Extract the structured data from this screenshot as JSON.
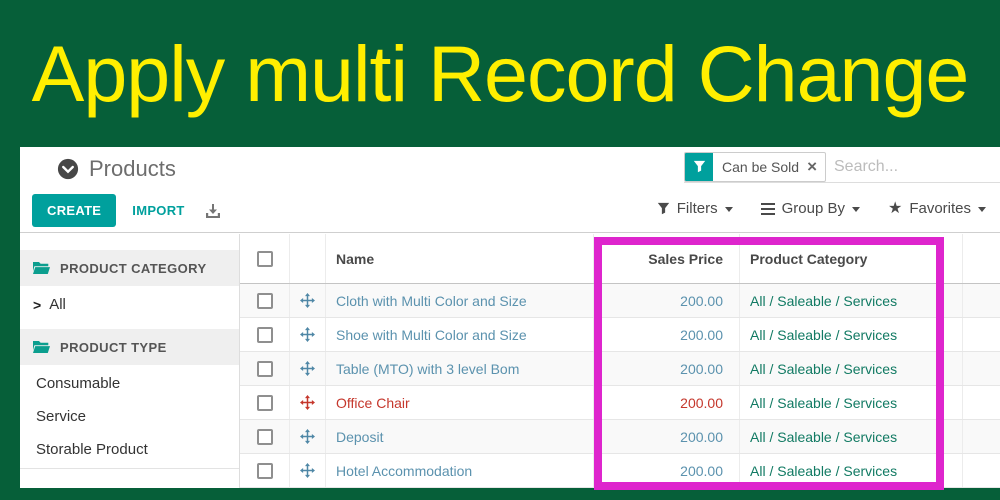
{
  "banner": {
    "title": "Apply multi Record Change"
  },
  "breadcrumb": {
    "title": "Products"
  },
  "toolbar": {
    "create": "CREATE",
    "import": "IMPORT",
    "export_icon": "download-icon"
  },
  "search": {
    "facet_label": "Can be Sold",
    "facet_icon": "funnel-icon",
    "remove_icon": "close-icon",
    "placeholder": "Search..."
  },
  "filter_menu": {
    "filters": "Filters",
    "group_by": "Group By",
    "favorites": "Favorites"
  },
  "sidebar": {
    "sections": [
      {
        "label": "PRODUCT CATEGORY",
        "icon": "folder-icon",
        "items": [
          {
            "label": "All",
            "expandable": true
          }
        ]
      },
      {
        "label": "PRODUCT TYPE",
        "icon": "folder-icon",
        "items": [
          {
            "label": "Consumable"
          },
          {
            "label": "Service"
          },
          {
            "label": "Storable Product"
          }
        ]
      }
    ]
  },
  "table": {
    "headers": {
      "name": "Name",
      "sales_price": "Sales Price",
      "product_category": "Product Category"
    },
    "rows": [
      {
        "name": "Cloth with Multi Color and Size",
        "sales_price": "200.00",
        "product_category": "All / Saleable / Services",
        "style": "normal"
      },
      {
        "name": "Shoe with Multi Color and Size",
        "sales_price": "200.00",
        "product_category": "All / Saleable / Services",
        "style": "normal"
      },
      {
        "name": "Table (MTO) with 3 level Bom",
        "sales_price": "200.00",
        "product_category": "All / Saleable / Services",
        "style": "normal"
      },
      {
        "name": "Office Chair",
        "sales_price": "200.00",
        "product_category": "All / Saleable / Services",
        "style": "danger"
      },
      {
        "name": "Deposit",
        "sales_price": "200.00",
        "product_category": "All / Saleable / Services",
        "style": "normal"
      },
      {
        "name": "Hotel Accommodation",
        "sales_price": "200.00",
        "product_category": "All / Saleable / Services",
        "style": "normal"
      }
    ]
  },
  "colors": {
    "banner_background": "#065f39",
    "banner_text": "#ffef00",
    "primary_teal": "#00a09d",
    "link_blue": "#5b92ae",
    "category_teal": "#117a63",
    "danger_red": "#c5372c",
    "highlight_magenta": "#de25cd"
  }
}
